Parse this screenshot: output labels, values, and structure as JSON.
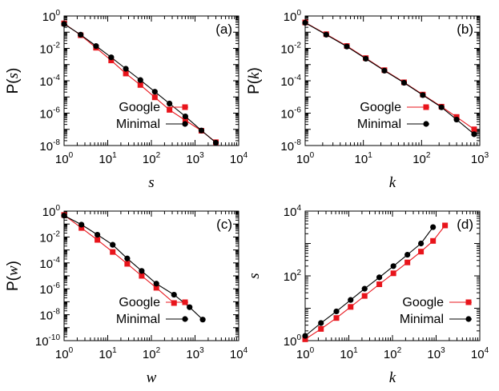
{
  "colors": {
    "google": "#e8141b",
    "minimal": "#000000"
  },
  "chart_data": [
    {
      "type": "line",
      "panel_label": "(a)",
      "xlabel": "s",
      "ylabel": {
        "prefix": "P(",
        "var": "s",
        "suffix": ")"
      },
      "xscale": "log",
      "yscale": "log",
      "xlim": [
        1,
        10000
      ],
      "ylim": [
        1e-08,
        1
      ],
      "xticks": [
        1,
        10,
        100,
        1000,
        10000
      ],
      "yticks": [
        1,
        0.01,
        0.0001,
        1e-06,
        1e-08
      ],
      "xtick_labels": [
        {
          "base": "10",
          "exp": "0"
        },
        {
          "base": "10",
          "exp": "1"
        },
        {
          "base": "10",
          "exp": "2"
        },
        {
          "base": "10",
          "exp": "3"
        },
        {
          "base": "10",
          "exp": "4"
        }
      ],
      "ytick_labels": [
        {
          "base": "10",
          "exp": "0"
        },
        {
          "base": "10",
          "exp": "-2"
        },
        {
          "base": "10",
          "exp": "-4"
        },
        {
          "base": "10",
          "exp": "-6"
        },
        {
          "base": "10",
          "exp": "-8"
        }
      ],
      "legend": {
        "placement": "bottom-left"
      },
      "series": [
        {
          "name": "Google",
          "marker": "square",
          "color": "#e8141b",
          "x": [
            1,
            2.4,
            5.4,
            12,
            26,
            56,
            120,
            260,
            600,
            1400,
            3000
          ],
          "y": [
            0.35,
            0.065,
            0.011,
            0.0018,
            0.00028,
            5.5e-05,
            9.5e-06,
            1.6e-06,
            3.6e-07,
            8.2e-08,
            1.6e-08
          ]
        },
        {
          "name": "Minimal",
          "marker": "circle",
          "color": "#000000",
          "x": [
            1,
            2.4,
            5.4,
            12,
            26,
            56,
            120,
            260,
            600,
            1400,
            3000
          ],
          "y": [
            0.32,
            0.07,
            0.014,
            0.0028,
            0.00055,
            0.00011,
            2.1e-05,
            3.9e-06,
            6.3e-07,
            8.5e-08,
            1.5e-08
          ]
        }
      ]
    },
    {
      "type": "line",
      "panel_label": "(b)",
      "xlabel": "k",
      "ylabel": {
        "prefix": "P(",
        "var": "k",
        "suffix": ")"
      },
      "xscale": "log",
      "yscale": "log",
      "xlim": [
        1,
        1000
      ],
      "ylim": [
        1e-08,
        1
      ],
      "xticks": [
        1,
        10,
        100,
        1000
      ],
      "yticks": [
        1,
        0.01,
        0.0001,
        1e-06,
        1e-08
      ],
      "xtick_labels": [
        {
          "base": "10",
          "exp": "0"
        },
        {
          "base": "10",
          "exp": "1"
        },
        {
          "base": "10",
          "exp": "2"
        },
        {
          "base": "10",
          "exp": "3"
        }
      ],
      "ytick_labels": [
        {
          "base": "10",
          "exp": "0"
        },
        {
          "base": "10",
          "exp": "-2"
        },
        {
          "base": "10",
          "exp": "-4"
        },
        {
          "base": "10",
          "exp": "-6"
        },
        {
          "base": "10",
          "exp": "-8"
        }
      ],
      "legend": {
        "placement": "bottom-left"
      },
      "series": [
        {
          "name": "Google",
          "marker": "square",
          "color": "#e8141b",
          "x": [
            1,
            2.3,
            5.2,
            11,
            23,
            50,
            105,
            220,
            400,
            800
          ],
          "y": [
            0.4,
            0.075,
            0.014,
            0.0025,
            0.00045,
            8e-05,
            1.4e-05,
            2.5e-06,
            5.8e-07,
            1e-07
          ]
        },
        {
          "name": "Minimal",
          "marker": "circle",
          "color": "#000000",
          "x": [
            1,
            2.3,
            5.2,
            11,
            23,
            50,
            105,
            220,
            400,
            800
          ],
          "y": [
            0.38,
            0.07,
            0.013,
            0.0023,
            0.00042,
            7.5e-05,
            1.3e-05,
            2.3e-06,
            4e-07,
            5e-08
          ]
        }
      ]
    },
    {
      "type": "line",
      "panel_label": "(c)",
      "xlabel": "w",
      "ylabel": {
        "prefix": "P(",
        "var": "w",
        "suffix": ")"
      },
      "xscale": "log",
      "yscale": "log",
      "xlim": [
        1,
        10000
      ],
      "ylim": [
        1e-10,
        1
      ],
      "xticks": [
        1,
        10,
        100,
        1000,
        10000
      ],
      "yticks": [
        1,
        0.01,
        0.0001,
        1e-06,
        1e-08,
        1e-10
      ],
      "xtick_labels": [
        {
          "base": "10",
          "exp": "0"
        },
        {
          "base": "10",
          "exp": "1"
        },
        {
          "base": "10",
          "exp": "2"
        },
        {
          "base": "10",
          "exp": "3"
        },
        {
          "base": "10",
          "exp": "4"
        }
      ],
      "ytick_labels": [
        {
          "base": "10",
          "exp": "0"
        },
        {
          "base": "10",
          "exp": "-2"
        },
        {
          "base": "10",
          "exp": "-4"
        },
        {
          "base": "10",
          "exp": "-6"
        },
        {
          "base": "10",
          "exp": "-8"
        },
        {
          "base": "10",
          "exp": "-10"
        }
      ],
      "legend": {
        "placement": "bottom-left"
      },
      "series": [
        {
          "name": "Google",
          "marker": "square",
          "color": "#e8141b",
          "x": [
            1,
            2.5,
            5.8,
            13,
            28,
            60,
            130,
            330
          ],
          "y": [
            0.5,
            0.05,
            0.006,
            0.0007,
            8.5e-05,
            1e-05,
            1.2e-06,
            8e-08
          ]
        },
        {
          "name": "Minimal",
          "marker": "circle",
          "color": "#000000",
          "x": [
            1,
            2.5,
            5.8,
            13,
            28,
            60,
            130,
            330,
            750,
            1500
          ],
          "y": [
            0.45,
            0.09,
            0.015,
            0.0025,
            0.00022,
            2.4e-05,
            2.5e-06,
            3.5e-07,
            3.8e-08,
            4.2e-09
          ]
        }
      ]
    },
    {
      "type": "line",
      "panel_label": "(d)",
      "xlabel": "k",
      "ylabel": {
        "prefix": "",
        "var": "s",
        "suffix": ""
      },
      "xscale": "log",
      "yscale": "log",
      "xlim": [
        1,
        10000
      ],
      "ylim": [
        1,
        10000
      ],
      "xticks": [
        1,
        10,
        100,
        1000,
        10000
      ],
      "yticks": [
        10000,
        100,
        1
      ],
      "xtick_labels": [
        {
          "base": "10",
          "exp": "0"
        },
        {
          "base": "10",
          "exp": "1"
        },
        {
          "base": "10",
          "exp": "2"
        },
        {
          "base": "10",
          "exp": "3"
        },
        {
          "base": "10",
          "exp": "4"
        }
      ],
      "ytick_labels": [
        {
          "base": "10",
          "exp": "4"
        },
        {
          "base": "10",
          "exp": "2"
        },
        {
          "base": "10",
          "exp": "0"
        }
      ],
      "legend": {
        "placement": "bottom-right"
      },
      "series": [
        {
          "name": "Google",
          "marker": "square",
          "color": "#e8141b",
          "x": [
            1,
            2.3,
            5.2,
            11,
            23,
            50,
            105,
            220,
            450,
            850,
            1600
          ],
          "y": [
            1.1,
            2.3,
            5,
            11,
            24,
            55,
            120,
            260,
            560,
            1200,
            3600
          ]
        },
        {
          "name": "Minimal",
          "marker": "circle",
          "color": "#000000",
          "x": [
            1,
            2.3,
            5.2,
            11,
            23,
            50,
            105,
            220,
            450,
            850
          ],
          "y": [
            1.4,
            3.5,
            8,
            18,
            40,
            90,
            200,
            450,
            1000,
            3200
          ]
        }
      ]
    }
  ]
}
